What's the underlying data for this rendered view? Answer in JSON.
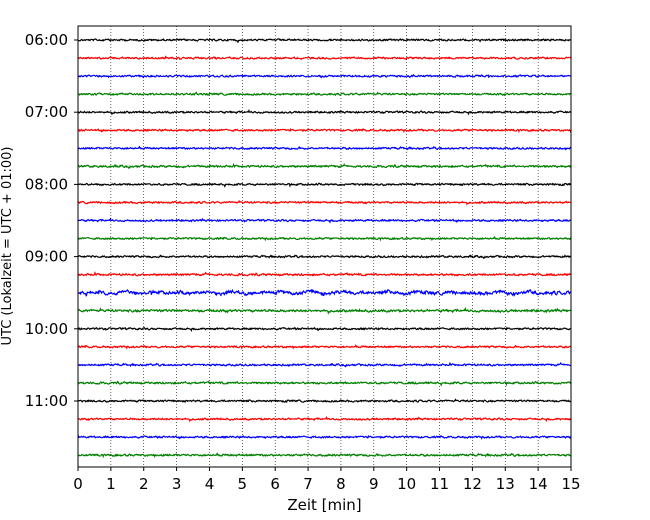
{
  "chart_data": {
    "type": "line",
    "title": "",
    "xlabel": "Zeit  [min]",
    "ylabel": "UTC (Lokalzeit = UTC + 01:00)",
    "xlim": [
      0,
      15
    ],
    "x_ticks": [
      "0",
      "1",
      "2",
      "3",
      "4",
      "5",
      "6",
      "7",
      "8",
      "9",
      "10",
      "11",
      "12",
      "13",
      "14",
      "15"
    ],
    "y_ticks": [
      "06:00",
      "07:00",
      "08:00",
      "09:00",
      "10:00",
      "11:00"
    ],
    "grid": "vertical dotted",
    "trace_interval_min": 15,
    "trace_colors": [
      "#000000",
      "#ff0000",
      "#0000ff",
      "#008000"
    ],
    "traces": [
      {
        "start": "06:00",
        "activity": 1.0
      },
      {
        "start": "06:15",
        "activity": 1.0
      },
      {
        "start": "06:30",
        "activity": 1.0
      },
      {
        "start": "06:45",
        "activity": 1.0
      },
      {
        "start": "07:00",
        "activity": 1.0
      },
      {
        "start": "07:15",
        "activity": 1.0
      },
      {
        "start": "07:30",
        "activity": 1.0
      },
      {
        "start": "07:45",
        "activity": 1.1
      },
      {
        "start": "08:00",
        "activity": 1.0
      },
      {
        "start": "08:15",
        "activity": 1.0
      },
      {
        "start": "08:30",
        "activity": 1.0
      },
      {
        "start": "08:45",
        "activity": 1.0
      },
      {
        "start": "09:00",
        "activity": 1.0
      },
      {
        "start": "09:15",
        "activity": 1.1
      },
      {
        "start": "09:30",
        "activity": 1.8
      },
      {
        "start": "09:45",
        "activity": 1.3
      },
      {
        "start": "10:00",
        "activity": 1.0
      },
      {
        "start": "10:15",
        "activity": 1.0
      },
      {
        "start": "10:30",
        "activity": 1.0
      },
      {
        "start": "10:45",
        "activity": 1.1
      },
      {
        "start": "11:00",
        "activity": 1.0
      },
      {
        "start": "11:15",
        "activity": 1.0
      },
      {
        "start": "11:30",
        "activity": 1.0
      },
      {
        "start": "11:45",
        "activity": 1.1
      }
    ]
  }
}
